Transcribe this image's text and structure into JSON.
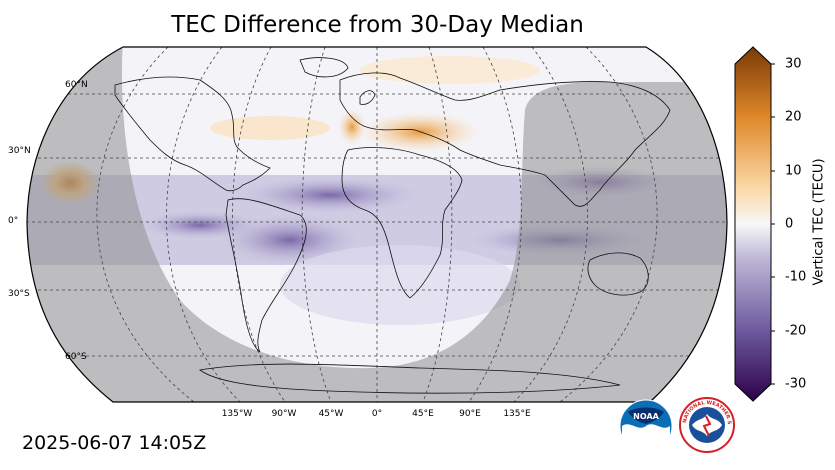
{
  "title": "TEC Difference from 30-Day Median",
  "timestamp": "2025-06-07 14:05Z",
  "latitude_labels": [
    "60°N",
    "30°N",
    "0°",
    "30°S",
    "60°S"
  ],
  "longitude_labels": [
    "135°W",
    "90°W",
    "45°W",
    "0°",
    "45°E",
    "90°E",
    "135°E"
  ],
  "colorbar": {
    "label": "Vertical TEC (TECU)",
    "ticks": [
      "30",
      "20",
      "10",
      "0",
      "-10",
      "-20",
      "-30"
    ],
    "range": [
      -30,
      30
    ],
    "colors": {
      "max": "#7a3b06",
      "high": "#e0882a",
      "mid_high": "#fbd9a8",
      "zero": "#f7f7f7",
      "mid_low": "#bcb6d6",
      "low": "#6e5a9e",
      "min": "#2d004b"
    }
  },
  "logos": {
    "noaa": "NOAA",
    "nws": "NATIONAL WEATHER SERVICE"
  }
}
